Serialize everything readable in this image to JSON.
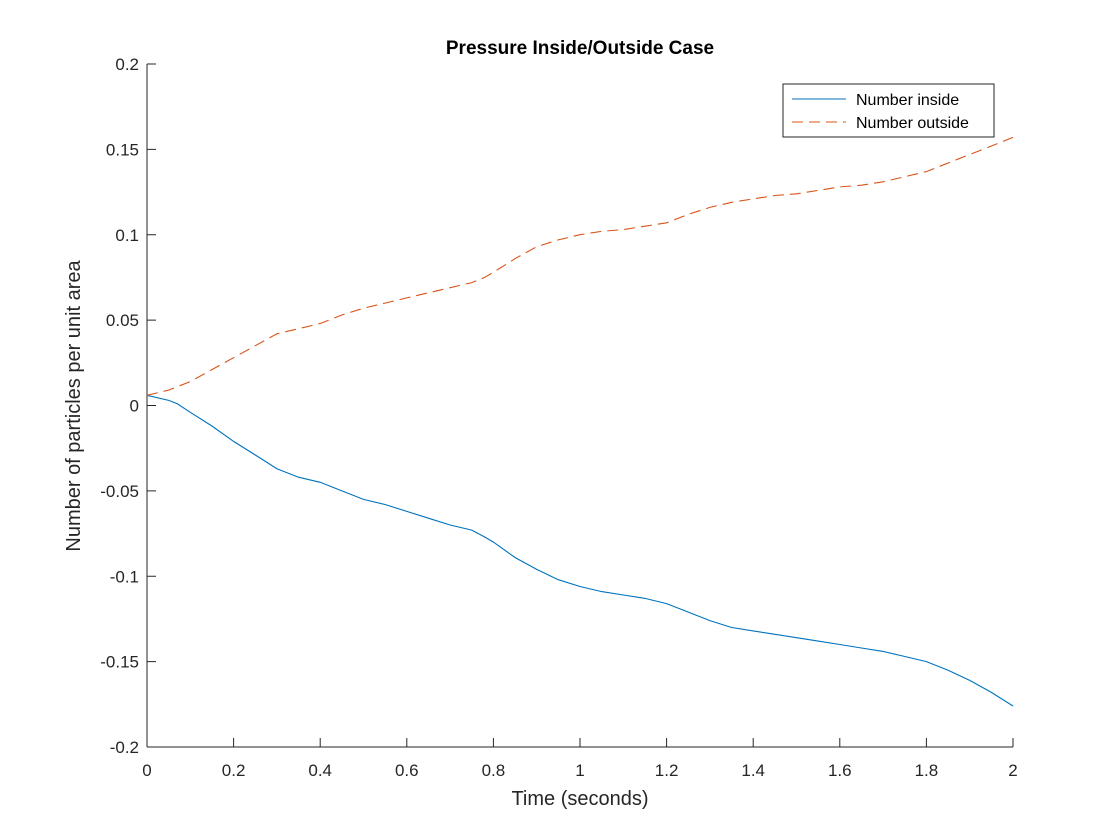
{
  "chart_data": {
    "type": "line",
    "title": "Pressure Inside/Outside Case",
    "xlabel": "Time (seconds)",
    "ylabel": "Number of particles per unit area",
    "xlim": [
      0,
      2
    ],
    "ylim": [
      -0.2,
      0.2
    ],
    "xticks": [
      0,
      0.2,
      0.4,
      0.6,
      0.8,
      1,
      1.2,
      1.4,
      1.6,
      1.8,
      2
    ],
    "xtick_labels": [
      "0",
      "0.2",
      "0.4",
      "0.6",
      "0.8",
      "1",
      "1.2",
      "1.4",
      "1.6",
      "1.8",
      "2"
    ],
    "yticks": [
      -0.2,
      -0.15,
      -0.1,
      -0.05,
      0,
      0.05,
      0.1,
      0.15,
      0.2
    ],
    "ytick_labels": [
      "-0.2",
      "-0.15",
      "-0.1",
      "-0.05",
      "0",
      "0.05",
      "0.1",
      "0.15",
      "0.2"
    ],
    "grid": false,
    "legend_position": "top-right",
    "series": [
      {
        "name": "Number inside",
        "color": "#0072BD",
        "dash": "solid",
        "x": [
          0,
          0.05,
          0.07,
          0.1,
          0.15,
          0.2,
          0.25,
          0.3,
          0.35,
          0.4,
          0.45,
          0.5,
          0.55,
          0.6,
          0.65,
          0.7,
          0.75,
          0.78,
          0.8,
          0.85,
          0.9,
          0.95,
          1.0,
          1.05,
          1.1,
          1.15,
          1.2,
          1.25,
          1.3,
          1.35,
          1.4,
          1.45,
          1.5,
          1.55,
          1.6,
          1.65,
          1.7,
          1.75,
          1.8,
          1.85,
          1.9,
          1.95,
          2.0
        ],
        "y": [
          0.006,
          0.003,
          0.001,
          -0.004,
          -0.012,
          -0.021,
          -0.029,
          -0.037,
          -0.042,
          -0.045,
          -0.05,
          -0.055,
          -0.058,
          -0.062,
          -0.066,
          -0.07,
          -0.073,
          -0.077,
          -0.08,
          -0.089,
          -0.096,
          -0.102,
          -0.106,
          -0.109,
          -0.111,
          -0.113,
          -0.116,
          -0.121,
          -0.126,
          -0.13,
          -0.132,
          -0.134,
          -0.136,
          -0.138,
          -0.14,
          -0.142,
          -0.144,
          -0.147,
          -0.15,
          -0.155,
          -0.161,
          -0.168,
          -0.176
        ]
      },
      {
        "name": "Number outside",
        "color": "#D95319",
        "dash": "dashed",
        "x": [
          0,
          0.05,
          0.1,
          0.15,
          0.2,
          0.25,
          0.3,
          0.35,
          0.4,
          0.45,
          0.5,
          0.55,
          0.6,
          0.65,
          0.7,
          0.75,
          0.78,
          0.8,
          0.85,
          0.9,
          0.95,
          1.0,
          1.05,
          1.1,
          1.15,
          1.2,
          1.25,
          1.3,
          1.35,
          1.4,
          1.45,
          1.5,
          1.55,
          1.6,
          1.65,
          1.7,
          1.75,
          1.8,
          1.85,
          1.9,
          1.95,
          2.0
        ],
        "y": [
          0.006,
          0.009,
          0.014,
          0.021,
          0.028,
          0.035,
          0.042,
          0.045,
          0.048,
          0.053,
          0.057,
          0.06,
          0.063,
          0.066,
          0.069,
          0.072,
          0.075,
          0.078,
          0.086,
          0.093,
          0.097,
          0.1,
          0.102,
          0.103,
          0.105,
          0.107,
          0.112,
          0.116,
          0.119,
          0.121,
          0.123,
          0.124,
          0.126,
          0.128,
          0.129,
          0.131,
          0.134,
          0.137,
          0.142,
          0.147,
          0.152,
          0.157
        ]
      }
    ]
  }
}
